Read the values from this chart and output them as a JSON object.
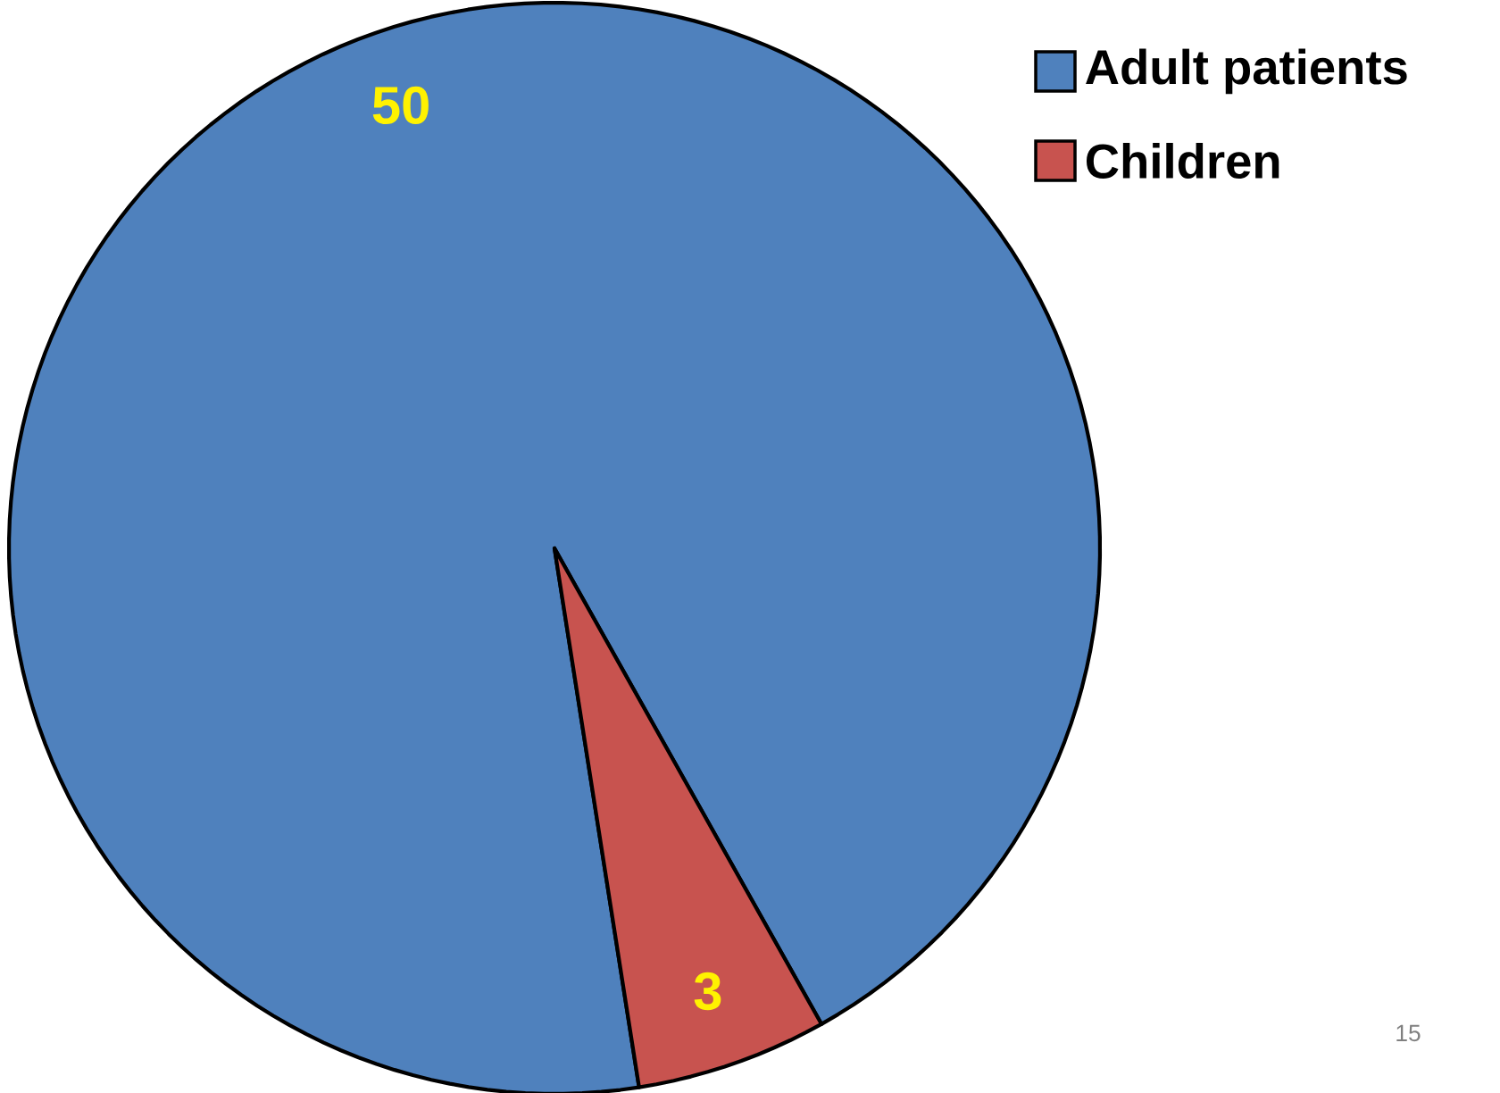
{
  "chart_data": {
    "type": "pie",
    "categories": [
      "Adult patients",
      "Children"
    ],
    "values": [
      50,
      3
    ],
    "colors": [
      "#4f81bd",
      "#c8534f"
    ],
    "data_labels": true,
    "legend": "top right",
    "annotations": [
      "15"
    ]
  }
}
